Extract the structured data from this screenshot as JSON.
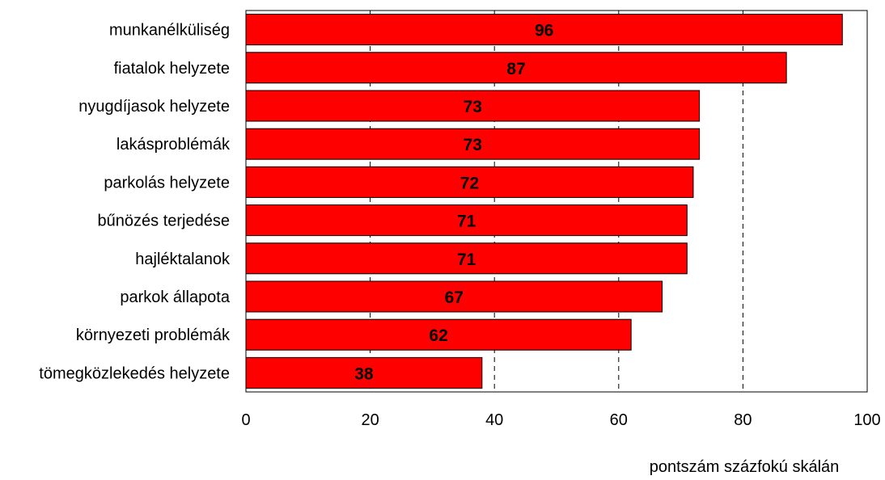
{
  "chart_data": {
    "type": "bar",
    "orientation": "horizontal",
    "categories": [
      "munkanélküliség",
      "fiatalok helyzete",
      "nyugdíjasok helyzete",
      "lakásproblémák",
      "parkolás helyzete",
      "bűnözés terjedése",
      "hajléktalanok",
      "parkok állapota",
      "környezeti problémák",
      "tömegközlekedés helyzete"
    ],
    "values": [
      96,
      87,
      73,
      73,
      72,
      71,
      71,
      67,
      62,
      38
    ],
    "value_labels": [
      "96",
      "87",
      "73",
      "73",
      "72",
      "71",
      "71",
      "67",
      "62",
      "38"
    ],
    "xlim": [
      0,
      100
    ],
    "x_ticks": [
      0,
      20,
      40,
      60,
      80,
      100
    ],
    "x_tick_labels": [
      "0",
      "20",
      "40",
      "60",
      "80",
      "100"
    ],
    "xlabel": "pontszám százfokú skálán",
    "ylabel": "",
    "title": "",
    "gridlines": "vertical dashed at 20, 40, 60, 80",
    "legend": "none",
    "bar_color": "#ff0000",
    "bar_outline_color": "#000000"
  }
}
